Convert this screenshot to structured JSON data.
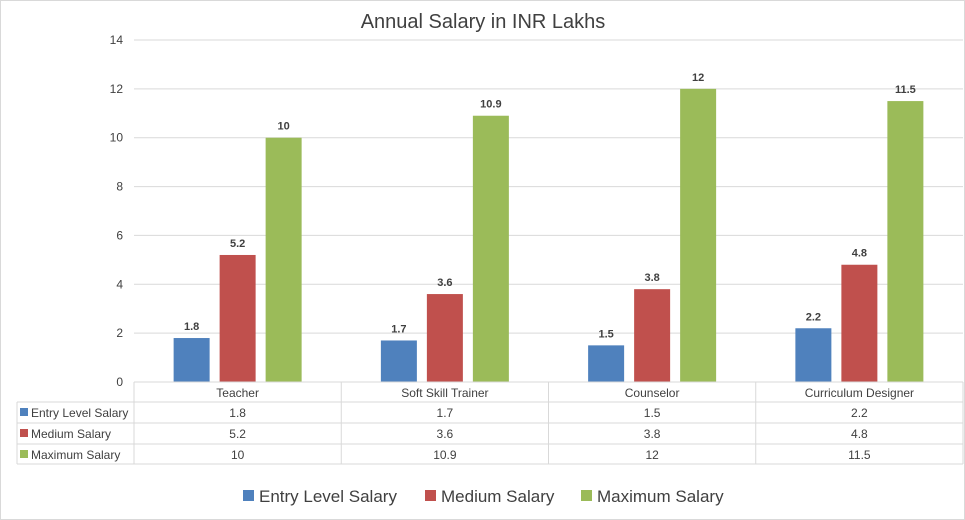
{
  "chart_data": {
    "type": "bar",
    "title": "Annual Salary in INR Lakhs",
    "categories": [
      "Teacher",
      "Soft Skill Trainer",
      "Counselor",
      "Curriculum Designer"
    ],
    "series": [
      {
        "name": "Entry Level Salary",
        "color": "#4f81bd",
        "values": [
          1.8,
          1.7,
          1.5,
          2.2
        ]
      },
      {
        "name": "Medium Salary",
        "color": "#c0504d",
        "values": [
          5.2,
          3.6,
          3.8,
          4.8
        ]
      },
      {
        "name": "Maximum Salary",
        "color": "#9bbb59",
        "values": [
          10,
          10.9,
          12,
          11.5
        ]
      }
    ],
    "ylim": [
      0,
      14
    ],
    "yticks": [
      0,
      2,
      4,
      6,
      8,
      10,
      12,
      14
    ],
    "grid": true,
    "legend": "bottom",
    "data_table": true
  }
}
